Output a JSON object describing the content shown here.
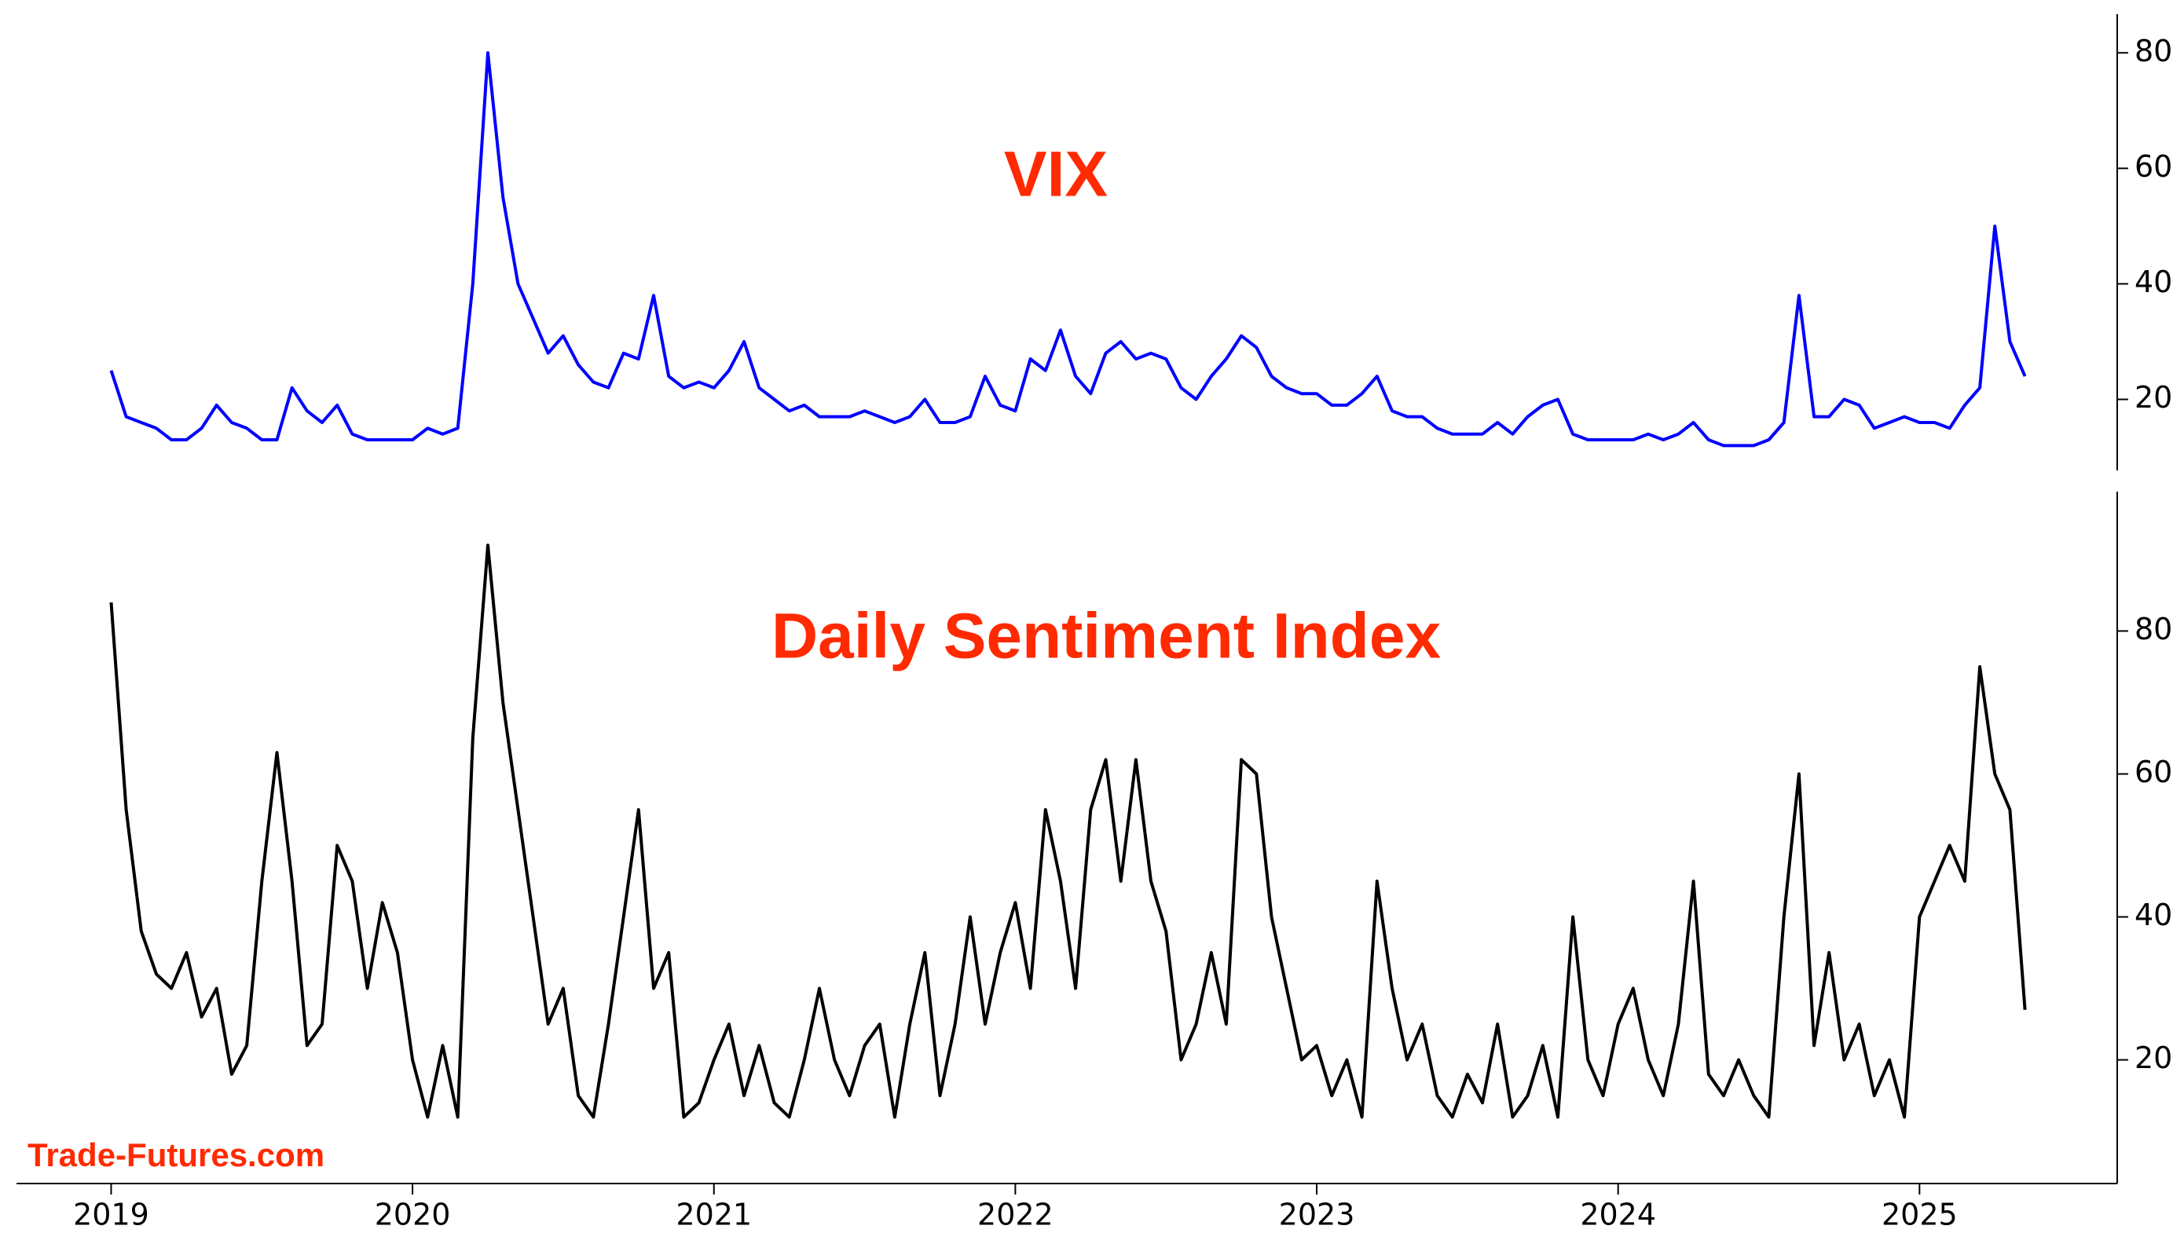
{
  "chart_data": [
    {
      "type": "line",
      "title": "VIX",
      "title_color": "#ff2a00",
      "xlim": [
        2018.686,
        2025.656
      ],
      "ylim": [
        7.7,
        86.7
      ],
      "yticks": [
        20,
        40,
        60,
        80
      ],
      "y_axis_side": "right",
      "x": [
        2019.0,
        2019.05,
        2019.1,
        2019.15,
        2019.2,
        2019.25,
        2019.3,
        2019.35,
        2019.4,
        2019.45,
        2019.5,
        2019.55,
        2019.6,
        2019.65,
        2019.7,
        2019.75,
        2019.8,
        2019.85,
        2019.9,
        2019.95,
        2020.0,
        2020.05,
        2020.1,
        2020.15,
        2020.2,
        2020.25,
        2020.3,
        2020.35,
        2020.4,
        2020.45,
        2020.5,
        2020.55,
        2020.6,
        2020.65,
        2020.7,
        2020.75,
        2020.8,
        2020.85,
        2020.9,
        2020.95,
        2021.0,
        2021.05,
        2021.1,
        2021.15,
        2021.2,
        2021.25,
        2021.3,
        2021.35,
        2021.4,
        2021.45,
        2021.5,
        2021.55,
        2021.6,
        2021.65,
        2021.7,
        2021.75,
        2021.8,
        2021.85,
        2021.9,
        2021.95,
        2022.0,
        2022.05,
        2022.1,
        2022.15,
        2022.2,
        2022.25,
        2022.3,
        2022.35,
        2022.4,
        2022.45,
        2022.5,
        2022.55,
        2022.6,
        2022.65,
        2022.7,
        2022.75,
        2022.8,
        2022.85,
        2022.9,
        2022.95,
        2023.0,
        2023.05,
        2023.1,
        2023.15,
        2023.2,
        2023.25,
        2023.3,
        2023.35,
        2023.4,
        2023.45,
        2023.5,
        2023.55,
        2023.6,
        2023.65,
        2023.7,
        2023.75,
        2023.8,
        2023.85,
        2023.9,
        2023.95,
        2024.0,
        2024.05,
        2024.1,
        2024.15,
        2024.2,
        2024.25,
        2024.3,
        2024.35,
        2024.4,
        2024.45,
        2024.5,
        2024.55,
        2024.6,
        2024.65,
        2024.7,
        2024.75,
        2024.8,
        2024.85,
        2024.9,
        2024.95,
        2025.0,
        2025.05,
        2025.1,
        2025.15,
        2025.2,
        2025.25,
        2025.3,
        2025.35
      ],
      "series": [
        {
          "name": "VIX",
          "color": "#0000ff",
          "values": [
            25,
            17,
            16,
            15,
            13,
            13,
            15,
            19,
            16,
            15,
            13,
            13,
            22,
            18,
            16,
            19,
            14,
            13,
            13,
            13,
            13,
            15,
            14,
            15,
            40,
            80,
            55,
            40,
            34,
            28,
            31,
            26,
            23,
            22,
            28,
            27,
            38,
            24,
            22,
            23,
            22,
            25,
            30,
            22,
            20,
            18,
            19,
            17,
            17,
            17,
            18,
            17,
            16,
            17,
            20,
            16,
            16,
            17,
            24,
            19,
            18,
            27,
            25,
            32,
            24,
            21,
            28,
            30,
            27,
            28,
            27,
            22,
            20,
            24,
            27,
            31,
            29,
            24,
            22,
            21,
            21,
            19,
            19,
            21,
            24,
            18,
            17,
            17,
            15,
            14,
            14,
            14,
            16,
            14,
            17,
            19,
            20,
            14,
            13,
            13,
            13,
            13,
            14,
            13,
            14,
            16,
            13,
            12,
            12,
            12,
            13,
            16,
            38,
            17,
            17,
            20,
            19,
            15,
            16,
            17,
            16,
            16,
            15,
            19,
            22,
            50,
            30,
            24
          ]
        }
      ]
    },
    {
      "type": "line",
      "title": "Daily Sentiment Index",
      "title_color": "#ff2a00",
      "annotation": "Trade-Futures.com",
      "xlim": [
        2018.686,
        2025.656
      ],
      "ylim": [
        2.7,
        99.5
      ],
      "yticks": [
        20,
        40,
        60,
        80
      ],
      "y_axis_side": "right",
      "xticks": [
        2019,
        2020,
        2021,
        2022,
        2023,
        2024,
        2025
      ],
      "x": [
        2019.0,
        2019.05,
        2019.1,
        2019.15,
        2019.2,
        2019.25,
        2019.3,
        2019.35,
        2019.4,
        2019.45,
        2019.5,
        2019.55,
        2019.6,
        2019.65,
        2019.7,
        2019.75,
        2019.8,
        2019.85,
        2019.9,
        2019.95,
        2020.0,
        2020.05,
        2020.1,
        2020.15,
        2020.2,
        2020.25,
        2020.3,
        2020.35,
        2020.4,
        2020.45,
        2020.5,
        2020.55,
        2020.6,
        2020.65,
        2020.7,
        2020.75,
        2020.8,
        2020.85,
        2020.9,
        2020.95,
        2021.0,
        2021.05,
        2021.1,
        2021.15,
        2021.2,
        2021.25,
        2021.3,
        2021.35,
        2021.4,
        2021.45,
        2021.5,
        2021.55,
        2021.6,
        2021.65,
        2021.7,
        2021.75,
        2021.8,
        2021.85,
        2021.9,
        2021.95,
        2022.0,
        2022.05,
        2022.1,
        2022.15,
        2022.2,
        2022.25,
        2022.3,
        2022.35,
        2022.4,
        2022.45,
        2022.5,
        2022.55,
        2022.6,
        2022.65,
        2022.7,
        2022.75,
        2022.8,
        2022.85,
        2022.9,
        2022.95,
        2023.0,
        2023.05,
        2023.1,
        2023.15,
        2023.2,
        2023.25,
        2023.3,
        2023.35,
        2023.4,
        2023.45,
        2023.5,
        2023.55,
        2023.6,
        2023.65,
        2023.7,
        2023.75,
        2023.8,
        2023.85,
        2023.9,
        2023.95,
        2024.0,
        2024.05,
        2024.1,
        2024.15,
        2024.2,
        2024.25,
        2024.3,
        2024.35,
        2024.4,
        2024.45,
        2024.5,
        2024.55,
        2024.6,
        2024.65,
        2024.7,
        2024.75,
        2024.8,
        2024.85,
        2024.9,
        2024.95,
        2025.0,
        2025.05,
        2025.1,
        2025.15,
        2025.2,
        2025.25,
        2025.3,
        2025.35
      ],
      "series": [
        {
          "name": "Daily Sentiment Index",
          "color": "#000000",
          "values": [
            84,
            55,
            38,
            32,
            30,
            35,
            26,
            30,
            18,
            22,
            45,
            63,
            45,
            22,
            25,
            50,
            45,
            30,
            42,
            35,
            20,
            12,
            22,
            12,
            65,
            92,
            70,
            55,
            40,
            25,
            30,
            15,
            12,
            25,
            40,
            55,
            30,
            35,
            12,
            14,
            20,
            25,
            15,
            22,
            14,
            12,
            20,
            30,
            20,
            15,
            22,
            25,
            12,
            25,
            35,
            15,
            25,
            40,
            25,
            35,
            42,
            30,
            55,
            45,
            30,
            55,
            62,
            45,
            62,
            45,
            38,
            20,
            25,
            35,
            25,
            62,
            60,
            40,
            30,
            20,
            22,
            15,
            20,
            12,
            45,
            30,
            20,
            25,
            15,
            12,
            18,
            14,
            25,
            12,
            15,
            22,
            12,
            40,
            20,
            15,
            25,
            30,
            20,
            15,
            25,
            45,
            18,
            15,
            20,
            15,
            12,
            40,
            60,
            22,
            35,
            20,
            25,
            15,
            20,
            12,
            40,
            45,
            50,
            45,
            75,
            60,
            55,
            27
          ]
        }
      ]
    }
  ]
}
